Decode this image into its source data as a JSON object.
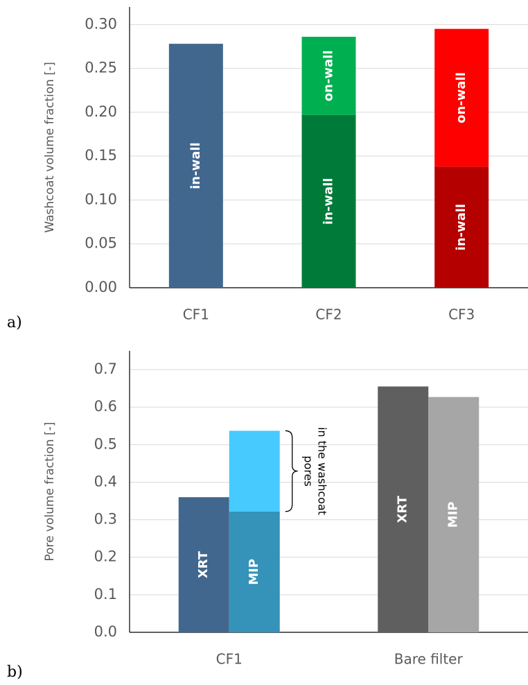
{
  "chart_data": [
    {
      "type": "bar",
      "panel_label": "a)",
      "y_label": "Washcoat volume fraction [-]",
      "stacked": true,
      "categories": [
        "CF1",
        "CF2",
        "CF3"
      ],
      "series": [
        {
          "name": "in-wall",
          "colors": [
            "#41678f",
            "#007a39",
            "#b50000"
          ],
          "values": [
            0.278,
            0.197,
            0.138
          ]
        },
        {
          "name": "on-wall",
          "colors": [
            null,
            "#00b050",
            "#ff0000"
          ],
          "values": [
            null,
            0.089,
            0.157
          ]
        }
      ],
      "ylim": [
        0,
        0.32
      ],
      "yticks": [
        {
          "value": 0,
          "label": "0.00"
        },
        {
          "value": 0.05,
          "label": "0.05"
        },
        {
          "value": 0.1,
          "label": "0.10"
        },
        {
          "value": 0.15,
          "label": "0.15"
        },
        {
          "value": 0.2,
          "label": "0.20"
        },
        {
          "value": 0.25,
          "label": "0.25"
        },
        {
          "value": 0.3,
          "label": "0.30"
        }
      ],
      "grid": true
    },
    {
      "type": "bar",
      "panel_label": "b)",
      "y_label": "Pore volume fraction [-]",
      "stacked": false,
      "categories": [
        "CF1",
        "Bare filter"
      ],
      "series": [
        {
          "name": "XRT",
          "colors": [
            "#41678f",
            "#5f5f5f"
          ],
          "values": [
            0.36,
            0.655
          ]
        },
        {
          "name": "MIP",
          "colors": [
            "#3592b8",
            "#a6a6a6"
          ],
          "values": [
            0.322,
            0.627
          ]
        },
        {
          "stack_on": 1,
          "colors": [
            "#47cbff",
            null
          ],
          "values": [
            0.215,
            null
          ],
          "annotation": [
            "pores",
            "in the washcoat"
          ]
        }
      ],
      "ylim": [
        0,
        0.75
      ],
      "yticks": [
        {
          "value": 0,
          "label": "0.0"
        },
        0.1,
        0.2,
        0.3,
        0.4,
        0.5,
        0.6,
        0.7
      ],
      "grid": true
    }
  ]
}
